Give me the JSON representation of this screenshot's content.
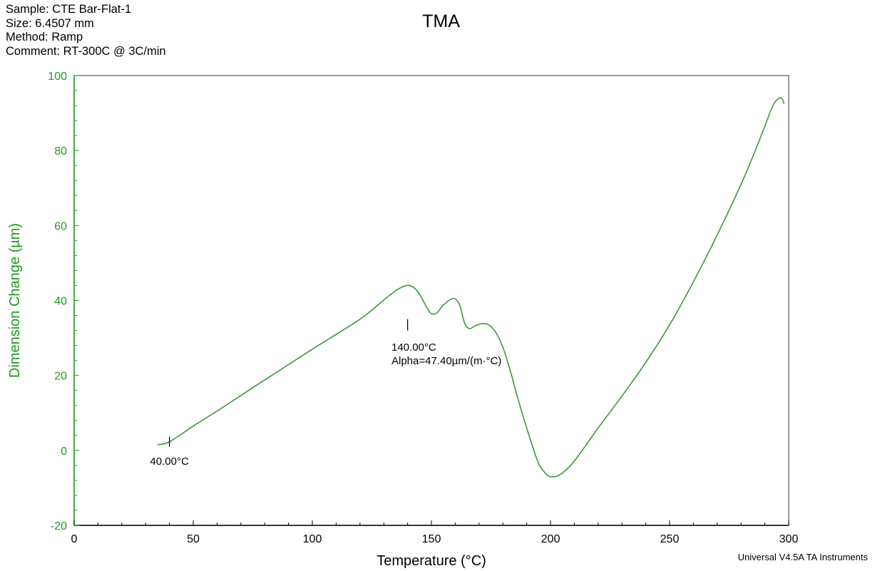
{
  "header": {
    "sample": "Sample: CTE Bar-Flat-1",
    "size": "Size:  6.4507 mm",
    "method": "Method: Ramp",
    "comment": "Comment: RT-300C @ 3C/min"
  },
  "footer": "Universal V4.5A TA Instruments",
  "colors": {
    "curve": "#3a9a3a",
    "y_axis": "#1f9a1f",
    "x_axis": "#000000",
    "frame": "#555555"
  },
  "chart_data": {
    "type": "line",
    "title": "TMA",
    "xlabel": "Temperature (°C)",
    "ylabel": "Dimension Change (µm)",
    "xlim": [
      0,
      300
    ],
    "ylim": [
      -20,
      100
    ],
    "x_ticks": [
      0,
      50,
      100,
      150,
      200,
      250,
      300
    ],
    "y_ticks": [
      -20,
      0,
      20,
      40,
      60,
      80,
      100
    ],
    "grid": false,
    "series": [
      {
        "x": [
          35,
          40,
          50,
          60,
          80,
          100,
          120,
          140,
          150,
          155,
          158,
          160,
          162,
          164,
          166,
          168,
          171,
          174,
          177,
          180,
          183,
          186,
          189,
          192,
          195,
          198,
          200,
          203,
          206,
          210,
          215,
          220,
          230,
          240,
          250,
          260,
          270,
          280,
          285,
          290,
          293,
          295,
          297,
          298
        ],
        "y": [
          1.5,
          2.3,
          6.5,
          10.5,
          18.8,
          27,
          35,
          44,
          36.5,
          38.8,
          40.3,
          40.4,
          38.5,
          33.8,
          32.5,
          33.1,
          33.8,
          33.5,
          31.5,
          27.5,
          21.5,
          14.5,
          8,
          2,
          -3.5,
          -6.2,
          -7,
          -6.8,
          -5.5,
          -2.8,
          1.5,
          6,
          14.5,
          23.5,
          33.5,
          45,
          57.5,
          71,
          78.5,
          86.5,
          91.5,
          93.5,
          94,
          92.5
        ]
      }
    ],
    "annotations": [
      {
        "x": 40,
        "y": 2.3,
        "text": "40.00°C"
      },
      {
        "x": 140,
        "y": 33.5,
        "text": "140.00°C",
        "text2": "Alpha=47.40µm/(m·°C)"
      }
    ]
  }
}
